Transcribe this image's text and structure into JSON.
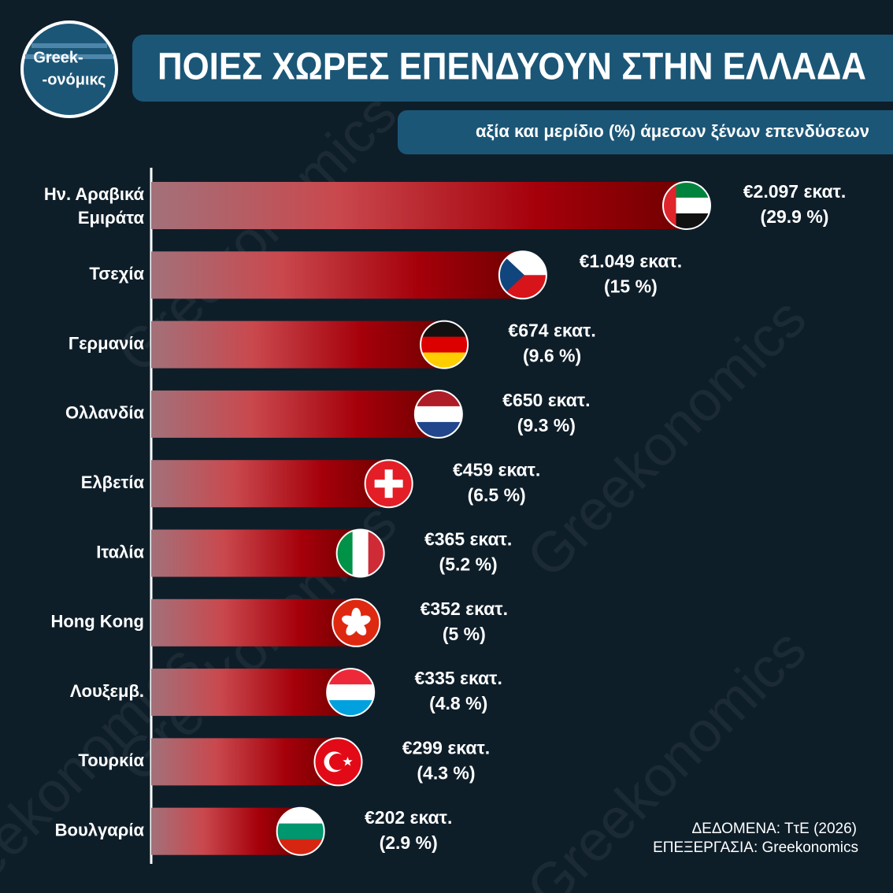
{
  "logo": {
    "line1": "Greek-",
    "line2": "-ονόμικς"
  },
  "watermark": "Greekonomics",
  "chart_data": {
    "type": "bar",
    "orientation": "horizontal",
    "title": "ΠΟΙΕΣ ΧΩΡΕΣ ΕΠΕΝΔΥΟΥΝ ΣΤΗΝ ΕΛΛΑΔΑ",
    "subtitle": "αξία και μερίδιο (%) άμεσων ξένων επενδύσεων",
    "categories": [
      "Ην. Αραβικά Εμιράτα",
      "Τσεχία",
      "Γερμανία",
      "Ολλανδία",
      "Ελβετία",
      "Ιταλία",
      "Hong Kong",
      "Λουξεμβ.",
      "Τουρκία",
      "Βουλγαρία"
    ],
    "values": [
      2097,
      1049,
      674,
      650,
      459,
      365,
      352,
      335,
      299,
      202
    ],
    "value_labels": [
      "€2.097 εκατ.",
      "€1.049 εκατ.",
      "€674 εκατ.",
      "€650 εκατ.",
      "€459 εκατ.",
      "€365 εκατ.",
      "€352 εκατ.",
      "€335 εκατ.",
      "€299 εκατ.",
      "€202 εκατ."
    ],
    "shares": [
      29.9,
      15,
      9.6,
      9.3,
      6.5,
      5.2,
      5,
      4.8,
      4.3,
      2.9
    ],
    "share_labels": [
      "(29.9 %)",
      "(15 %)",
      "(9.6 %)",
      "(9.3 %)",
      "(6.5 %)",
      "(5.2 %)",
      "(5 %)",
      "(4.8 %)",
      "(4.3 %)",
      "(2.9 %)"
    ],
    "source": [
      "ΔΕΔΟΜΕΝΑ: ΤτΕ (2026)",
      "ΕΠΕΞΕΡΓΑΣΙΑ: Greekonomics"
    ]
  }
}
